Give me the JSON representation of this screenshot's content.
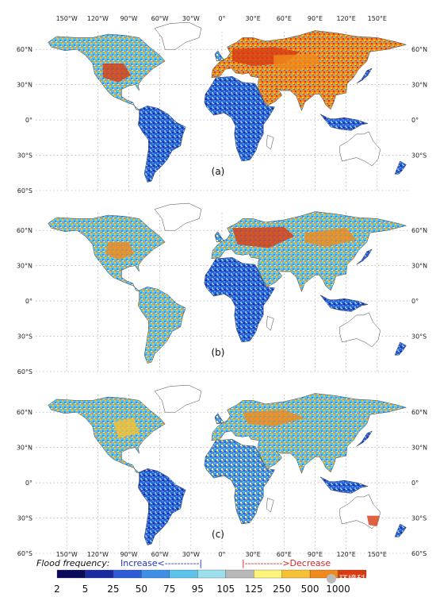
{
  "panels": [
    {
      "label": "(a)"
    },
    {
      "label": "(b)"
    },
    {
      "label": "(c)"
    }
  ],
  "top_longitude_labels": [
    "150°W",
    "120°W",
    "90°W",
    "60°W",
    "30°W",
    "0°",
    "30°E",
    "60°E",
    "90°E",
    "120°E",
    "150°E"
  ],
  "bottom_longitude_labels": [
    "150°W",
    "120°W",
    "90°W",
    "60°W",
    "30°W",
    "0°",
    "30°E",
    "60°E",
    "90°E",
    "120°E",
    "150°E"
  ],
  "latitude_labels": [
    "60°N",
    "30°N",
    "0°",
    "30°S",
    "60°S"
  ],
  "legend": {
    "title": "Flood frequency:",
    "increase": "Increase<-----------|",
    "decrease": "|------------>Decrease",
    "ticks": [
      "2",
      "5",
      "25",
      "50",
      "75",
      "95",
      "105",
      "125",
      "250",
      "500",
      "1000"
    ],
    "colors": [
      "#0a0a5a",
      "#1a2aa0",
      "#2f5bd6",
      "#3f8fe8",
      "#5bc3ea",
      "#9be0ec",
      "#b8b8b8",
      "#fff47a",
      "#f6c233",
      "#f08a1c",
      "#d83a12"
    ]
  },
  "watermark": "环境科学与政策"
}
